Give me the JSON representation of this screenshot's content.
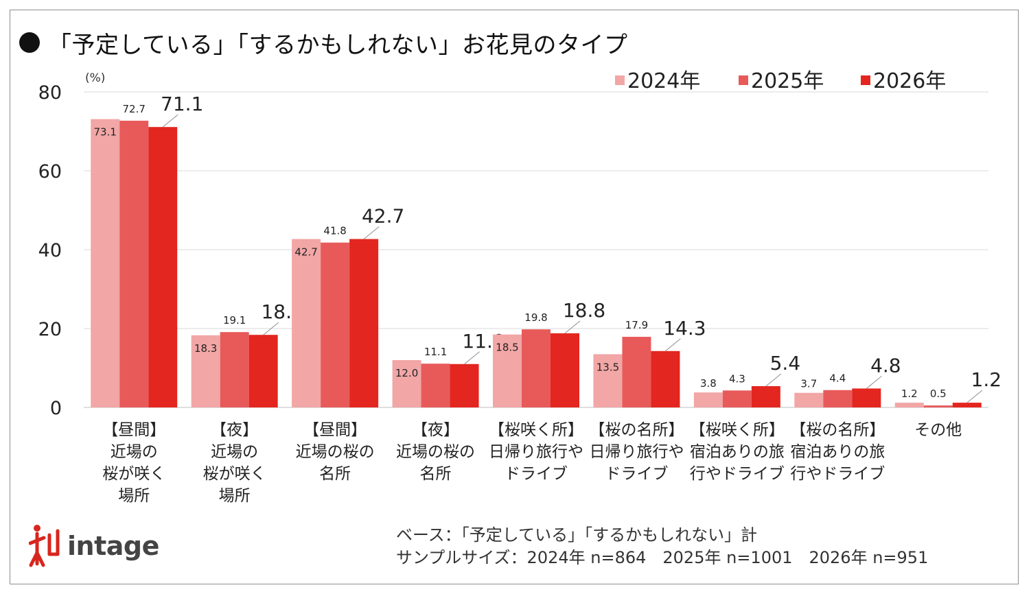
{
  "title": "「予定している」「するかもしれない」お花見のタイプ",
  "unit_label": "(%)",
  "logo_text": "intage",
  "notes": {
    "base": "ベース：「予定している」「するかもしれない」計",
    "sample": "サンプルサイズ：2024年 n=864　2025年 n=1001　2026年 n=951"
  },
  "colors": {
    "series_2024": "#f2a6a6",
    "series_2025": "#e85a5a",
    "series_2026": "#e3261f",
    "grid": "#d9d9d9",
    "logo": "#d7261e"
  },
  "chart_data": {
    "type": "bar",
    "ylabel": "(%)",
    "ylim": [
      0,
      80
    ],
    "yticks": [
      0,
      20,
      40,
      60,
      80
    ],
    "grid": true,
    "legend_position": "top-right",
    "categories": [
      [
        "【昼間】",
        "近場の",
        "桜が咲く",
        "場所"
      ],
      [
        "【夜】",
        "近場の",
        "桜が咲く",
        "場所"
      ],
      [
        "【昼間】",
        "近場の桜の",
        "名所"
      ],
      [
        "【夜】",
        "近場の桜の",
        "名所"
      ],
      [
        "【桜咲く所】",
        "日帰り旅行や",
        "ドライブ"
      ],
      [
        "【桜の名所】",
        "日帰り旅行や",
        "ドライブ"
      ],
      [
        "【桜咲く所】",
        "宿泊ありの旅",
        "行やドライブ"
      ],
      [
        "【桜の名所】",
        "宿泊ありの旅",
        "行やドライブ"
      ],
      [
        "その他"
      ]
    ],
    "series": [
      {
        "name": "2024年",
        "values": [
          73.1,
          18.3,
          42.7,
          12.0,
          18.5,
          13.5,
          3.8,
          3.7,
          1.2
        ]
      },
      {
        "name": "2025年",
        "values": [
          72.7,
          19.1,
          41.8,
          11.1,
          19.8,
          17.9,
          4.3,
          4.4,
          0.5
        ]
      },
      {
        "name": "2026年",
        "values": [
          71.1,
          18.4,
          42.7,
          11.0,
          18.8,
          14.3,
          5.4,
          4.8,
          1.2
        ]
      }
    ]
  }
}
